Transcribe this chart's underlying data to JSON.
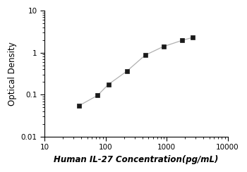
{
  "x_data": [
    37,
    74,
    111,
    222,
    444,
    888,
    1776,
    2664
  ],
  "y_data": [
    0.055,
    0.096,
    0.175,
    0.36,
    0.87,
    1.4,
    1.95,
    2.3
  ],
  "xlabel": "Human IL-27 Concentration(pg/mL)",
  "ylabel": "Optical Density",
  "xlim": [
    10,
    10000
  ],
  "ylim": [
    0.01,
    10
  ],
  "line_color": "#b0b0b0",
  "marker_color": "#1a1a1a",
  "marker": "s",
  "marker_size": 4.5,
  "line_width": 0.9,
  "background_color": "#ffffff",
  "xlabel_fontsize": 8.5,
  "ylabel_fontsize": 8.5,
  "tick_fontsize": 7.5,
  "xticks": [
    10,
    100,
    1000,
    10000
  ],
  "xtick_labels": [
    "10",
    "100",
    "1000",
    "10000"
  ],
  "yticks": [
    0.01,
    0.1,
    1,
    10
  ],
  "ytick_labels": [
    "0.01",
    "0.1",
    "1",
    "10"
  ]
}
